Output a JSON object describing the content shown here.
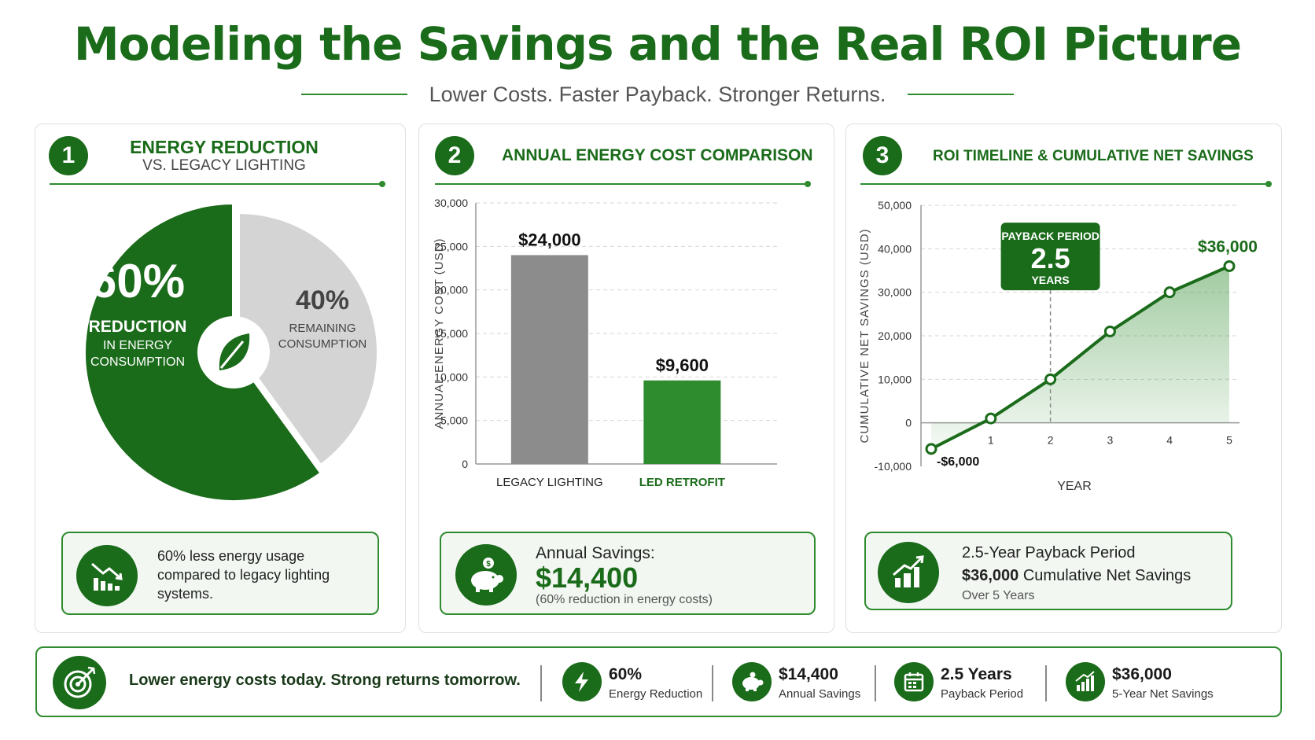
{
  "header": {
    "title": "Modeling the Savings and the Real ROI Picture",
    "subtitle": "Lower Costs. Faster Payback. Stronger Returns."
  },
  "panel1": {
    "number": "1",
    "title": "ENERGY REDUCTION",
    "subtitle": "VS. LEGACY LIGHTING",
    "reduction_pct": "60%",
    "reduction_label": "REDUCTION",
    "reduction_sub1": "IN ENERGY",
    "reduction_sub2": "CONSUMPTION",
    "remaining_pct": "40%",
    "remaining_label1": "REMAINING",
    "remaining_label2": "CONSUMPTION",
    "info_line1": "60% less energy usage",
    "info_line2": "compared to legacy lighting",
    "info_line3": "systems."
  },
  "panel2": {
    "number": "2",
    "title": "ANNUAL ENERGY COST COMPARISON",
    "savings_label": "Annual Savings:",
    "savings_value": "$14,400",
    "savings_note": "(60% reduction in energy costs)"
  },
  "panel3": {
    "number": "3",
    "title": "ROI TIMELINE & CUMULATIVE NET SAVINGS",
    "payback_title": "PAYBACK PERIOD",
    "payback_value": "2.5",
    "payback_unit": "YEARS",
    "info_line1": "2.5-Year Payback Period",
    "info_value": "$36,000",
    "info_line2_rest": " Cumulative Net Savings",
    "info_line3": "Over 5 Years"
  },
  "footer": {
    "tagline": "Lower energy costs today. Strong returns tomorrow.",
    "stats": [
      {
        "value": "60%",
        "label": "Energy Reduction",
        "icon": "lightning-icon"
      },
      {
        "value": "$14,400",
        "label": "Annual Savings",
        "icon": "piggy-bank-icon"
      },
      {
        "value": "2.5 Years",
        "label": "Payback Period",
        "icon": "calendar-icon"
      },
      {
        "value": "$36,000",
        "label": "5-Year Net Savings",
        "icon": "growth-chart-icon"
      }
    ]
  },
  "colors": {
    "green_dark": "#1a6b1a",
    "green": "#2e8b2e",
    "gray_bar": "#8c8c8c",
    "gray_pie": "#d4d4d4"
  },
  "chart_data": [
    {
      "type": "pie",
      "categories": [
        "REDUCTION IN ENERGY CONSUMPTION",
        "REMAINING CONSUMPTION"
      ],
      "values": [
        60,
        40
      ],
      "data_labels": [
        "60%",
        "40%"
      ]
    },
    {
      "type": "bar",
      "categories": [
        "LEGACY LIGHTING",
        "LED RETROFIT"
      ],
      "values": [
        24000,
        9600
      ],
      "data_labels": [
        "$24,000",
        "$9,600"
      ],
      "ylabel": "ANNUAL ENERGY COST (USD)",
      "ylim": [
        0,
        30000
      ],
      "yticks": [
        "0",
        "5,000",
        "10,000",
        "15,000",
        "20,000",
        "25,000",
        "30,000"
      ],
      "grid": true
    },
    {
      "type": "area",
      "x": [
        0,
        1,
        2,
        3,
        4,
        5
      ],
      "values": [
        -6000,
        1000,
        10000,
        21000,
        30000,
        36000
      ],
      "xticks": [
        "1",
        "2",
        "3",
        "4",
        "5"
      ],
      "xlabel": "YEAR",
      "ylabel": "CUMULATIVE NET SAVINGS (USD)",
      "ylim": [
        -10000,
        50000
      ],
      "yticks": [
        "-10,000",
        "0",
        "10,000",
        "20,000",
        "30,000",
        "40,000",
        "50,000"
      ],
      "start_label": "-$6,000",
      "end_label": "$36,000",
      "payback_x": 2,
      "grid": true
    }
  ]
}
